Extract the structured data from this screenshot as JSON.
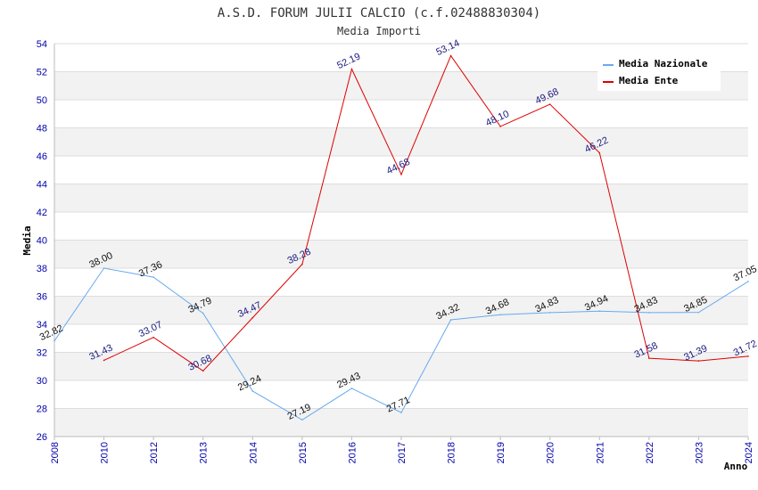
{
  "chart_data": {
    "type": "line",
    "title": "A.S.D. FORUM JULII CALCIO (c.f.02488830304)",
    "subtitle": "Media Importi",
    "xlabel": "Anno",
    "ylabel": "Media",
    "ylim": [
      26,
      54
    ],
    "y_ticks": [
      26,
      28,
      30,
      32,
      34,
      36,
      38,
      40,
      42,
      44,
      46,
      48,
      50,
      52,
      54
    ],
    "categories": [
      "2008",
      "2010",
      "2012",
      "2013",
      "2014",
      "2015",
      "2016",
      "2017",
      "2018",
      "2019",
      "2020",
      "2021",
      "2022",
      "2023",
      "2024"
    ],
    "grid": true,
    "legend_position": "top-right",
    "series": [
      {
        "name": "Media Nazionale",
        "color": "#66aaee",
        "values": [
          32.82,
          38.0,
          37.36,
          34.79,
          29.24,
          27.19,
          29.43,
          27.71,
          34.32,
          34.68,
          34.83,
          34.94,
          34.83,
          34.85,
          37.05
        ],
        "labels": [
          "32.82",
          "38.00",
          "37.36",
          "34.79",
          "29.24",
          "27.19",
          "29.43",
          "27.71",
          "34.32",
          "34.68",
          "34.83",
          "34.94",
          "34.83",
          "34.85",
          "37.05"
        ]
      },
      {
        "name": "Media Ente",
        "color": "#dd0000",
        "values": [
          null,
          31.43,
          33.07,
          30.68,
          34.47,
          38.28,
          52.19,
          44.68,
          53.14,
          48.1,
          49.68,
          46.22,
          31.58,
          31.39,
          31.72
        ],
        "labels": [
          null,
          "31.43",
          "33.07",
          "30.68",
          "34.47",
          "38.28",
          "52.19",
          "44.68",
          "53.14",
          "48.10",
          "49.68",
          "46.22",
          "31.58",
          "31.39",
          "31.72"
        ]
      }
    ]
  }
}
